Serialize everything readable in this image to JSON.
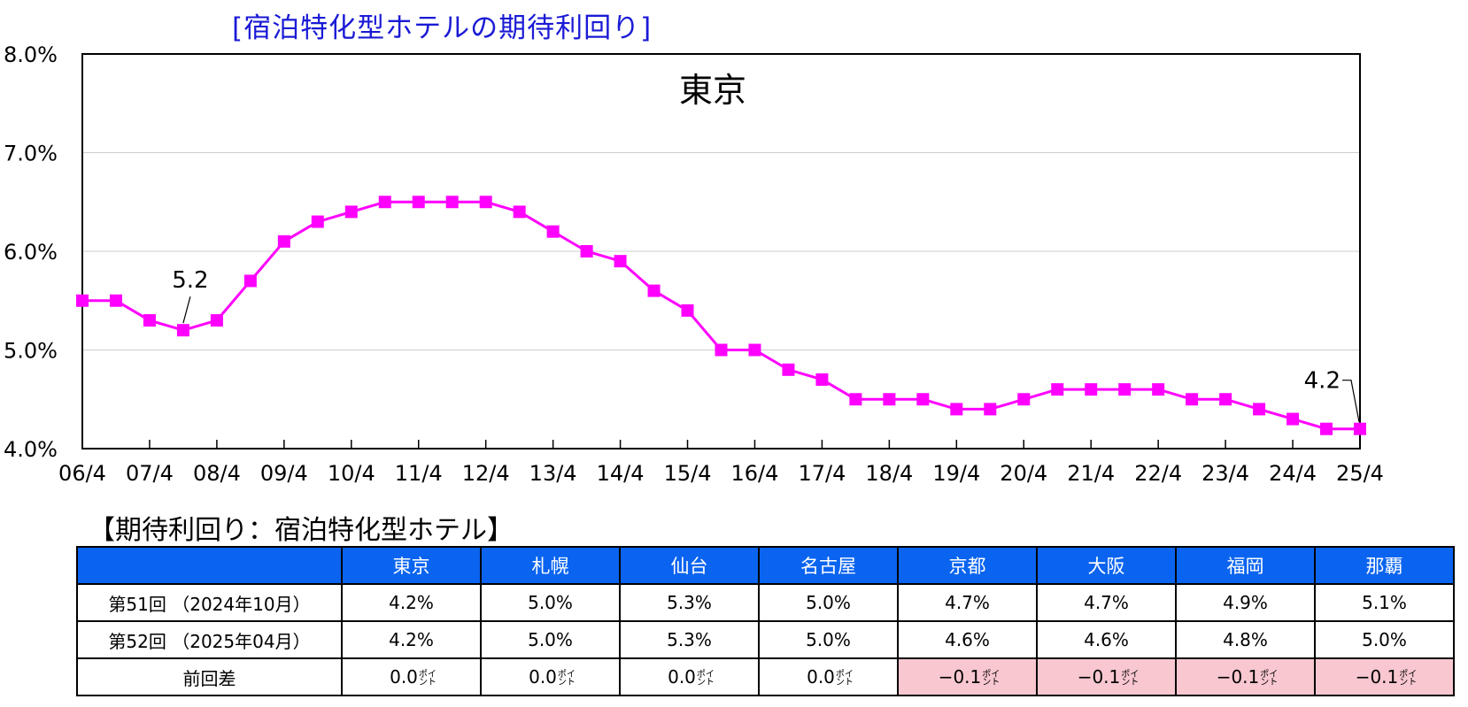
{
  "header": {
    "title": "[宿泊特化型ホテルの期待利回り]"
  },
  "chart_data": {
    "type": "line",
    "title": "[宿泊特化型ホテルの期待利回り]",
    "panel_label": "東京",
    "x": [
      "06/4",
      "06/10",
      "07/4",
      "07/10",
      "08/4",
      "08/10",
      "09/4",
      "09/10",
      "10/4",
      "10/10",
      "11/4",
      "11/10",
      "12/4",
      "12/10",
      "13/4",
      "13/10",
      "14/4",
      "14/10",
      "15/4",
      "15/10",
      "16/4",
      "16/10",
      "17/4",
      "17/10",
      "18/4",
      "18/10",
      "19/4",
      "19/10",
      "20/4",
      "20/10",
      "21/4",
      "21/10",
      "22/4",
      "22/10",
      "23/4",
      "23/10",
      "24/4",
      "24/10",
      "25/4"
    ],
    "x_tick_labels": [
      "06/4",
      "07/4",
      "08/4",
      "09/4",
      "10/4",
      "11/4",
      "12/4",
      "13/4",
      "14/4",
      "15/4",
      "16/4",
      "17/4",
      "18/4",
      "19/4",
      "20/4",
      "21/4",
      "22/4",
      "23/4",
      "24/4",
      "25/4"
    ],
    "series": [
      {
        "values": [
          5.5,
          5.5,
          5.3,
          5.2,
          5.3,
          5.7,
          6.1,
          6.3,
          6.4,
          6.5,
          6.5,
          6.5,
          6.5,
          6.4,
          6.2,
          6.0,
          5.9,
          5.6,
          5.4,
          5.0,
          5.0,
          4.8,
          4.7,
          4.5,
          4.5,
          4.5,
          4.4,
          4.4,
          4.5,
          4.6,
          4.6,
          4.6,
          4.6,
          4.5,
          4.5,
          4.4,
          4.3,
          4.2,
          4.2
        ]
      }
    ],
    "ylim": [
      4.0,
      8.0
    ],
    "y_ticks": [
      4.0,
      5.0,
      6.0,
      7.0,
      8.0
    ],
    "y_tick_labels": [
      "4.0%",
      "5.0%",
      "6.0%",
      "7.0%",
      "8.0%"
    ],
    "annotations": [
      {
        "text": "5.2",
        "x": "07/10",
        "y": 5.2
      },
      {
        "text": "4.2",
        "x": "25/4",
        "y": 4.2
      }
    ],
    "grid": true,
    "colors": {
      "series": "#ff00ff",
      "grid": "#cccccc",
      "axis": "#000000"
    },
    "xlabel": "",
    "ylabel": ""
  },
  "table": {
    "title": "【期待利回り：宿泊特化型ホテル】",
    "corner": "",
    "columns": [
      "東京",
      "札幌",
      "仙台",
      "名古屋",
      "京都",
      "大阪",
      "福岡",
      "那覇"
    ],
    "rows": [
      {
        "label": "第51回 （2024年10月）",
        "cells": [
          "4.2%",
          "5.0%",
          "5.3%",
          "5.0%",
          "4.7%",
          "4.7%",
          "4.9%",
          "5.1%"
        ]
      },
      {
        "label": "第52回 （2025年04月）",
        "cells": [
          "4.2%",
          "5.0%",
          "5.3%",
          "5.0%",
          "4.6%",
          "4.6%",
          "4.8%",
          "5.0%"
        ]
      }
    ],
    "diff_row": {
      "label": "前回差",
      "values": [
        "0.0",
        "0.0",
        "0.0",
        "0.0",
        "-0.1",
        "-0.1",
        "-0.1",
        "-0.1"
      ],
      "unit_line1": "ポイ",
      "unit_line2": "ント"
    },
    "colors": {
      "header_bg": "#0a64f0",
      "header_text": "#ffffff",
      "negative_bg": "#f8c7cf"
    }
  }
}
